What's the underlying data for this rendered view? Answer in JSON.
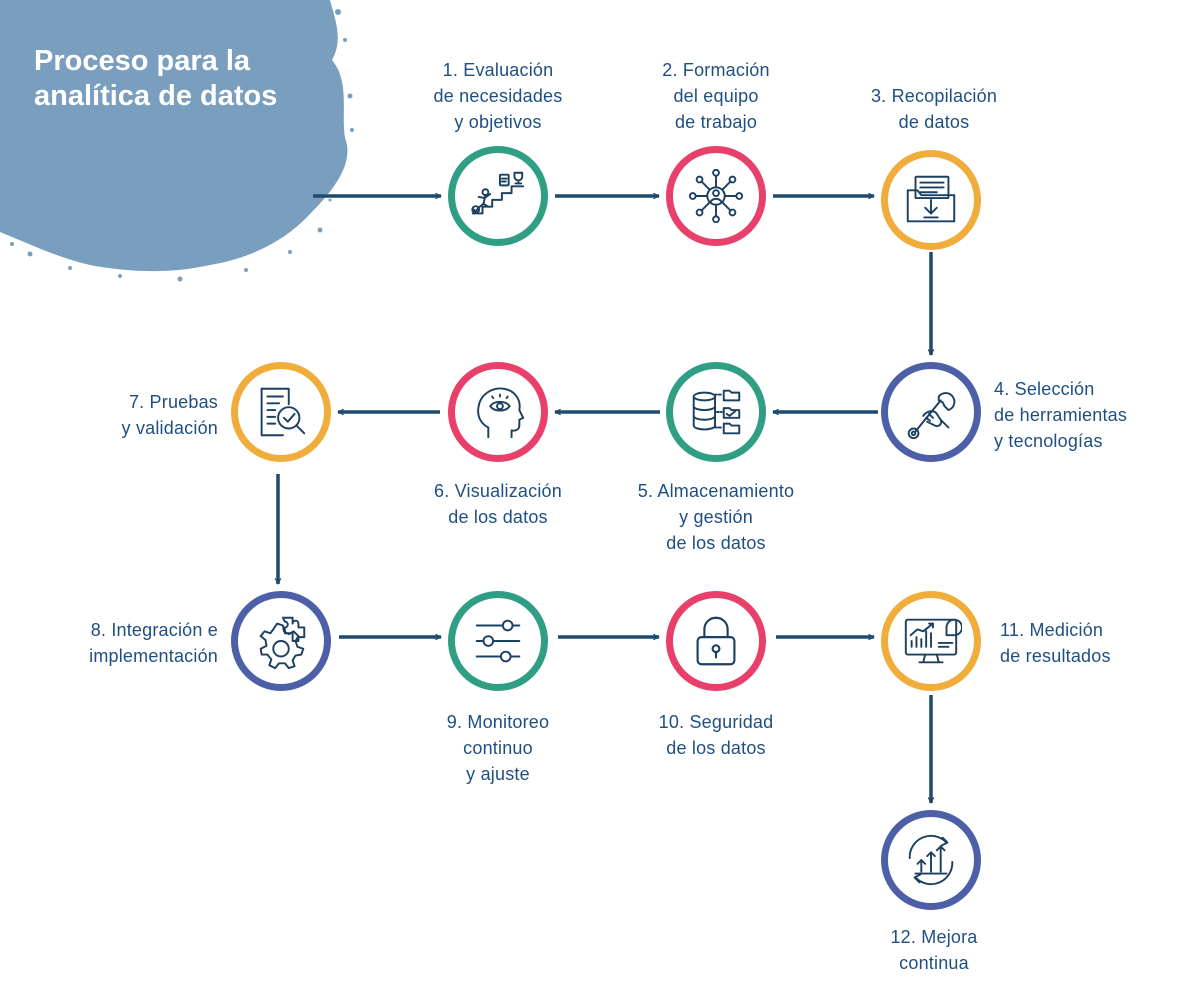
{
  "title": "Proceso para la analítica de datos",
  "colors": {
    "blob": "#7a9fbe",
    "label_text": "#1f4f82",
    "icon_stroke": "#1c4060",
    "connector": "#1f4a6d",
    "teal": "#2f9e85",
    "pink": "#e8406a",
    "orange": "#f0ad3c",
    "navy": "#4d5fa6"
  },
  "steps": [
    {
      "number": 1,
      "label": "1. Evaluación\nde necesidades\ny objetivos",
      "icon": "stairs-goal-icon",
      "color": "teal"
    },
    {
      "number": 2,
      "label": "2. Formación\ndel equipo\nde trabajo",
      "icon": "team-network-icon",
      "color": "pink"
    },
    {
      "number": 3,
      "label": "3. Recopilación\nde datos",
      "icon": "folder-download-icon",
      "color": "orange"
    },
    {
      "number": 4,
      "label": "4. Selección\nde herramientas\ny tecnologías",
      "icon": "wrench-hand-icon",
      "color": "navy"
    },
    {
      "number": 5,
      "label": "5. Almacenamiento\ny gestión\nde los datos",
      "icon": "database-folders-icon",
      "color": "teal"
    },
    {
      "number": 6,
      "label": "6. Visualización\nde los datos",
      "icon": "head-eye-icon",
      "color": "pink"
    },
    {
      "number": 7,
      "label": "7. Pruebas\ny validación",
      "icon": "document-check-icon",
      "color": "orange"
    },
    {
      "number": 8,
      "label": "8. Integración e\nimplementación",
      "icon": "gear-puzzle-icon",
      "color": "navy"
    },
    {
      "number": 9,
      "label": "9. Monitoreo\ncontinuo\ny ajuste",
      "icon": "sliders-icon",
      "color": "teal"
    },
    {
      "number": 10,
      "label": "10. Seguridad\nde los datos",
      "icon": "padlock-icon",
      "color": "pink"
    },
    {
      "number": 11,
      "label": "11. Medición\nde resultados",
      "icon": "monitor-chart-icon",
      "color": "orange"
    },
    {
      "number": 12,
      "label": "12. Mejora\ncontinua",
      "icon": "cycle-arrows-up-icon",
      "color": "navy"
    }
  ]
}
